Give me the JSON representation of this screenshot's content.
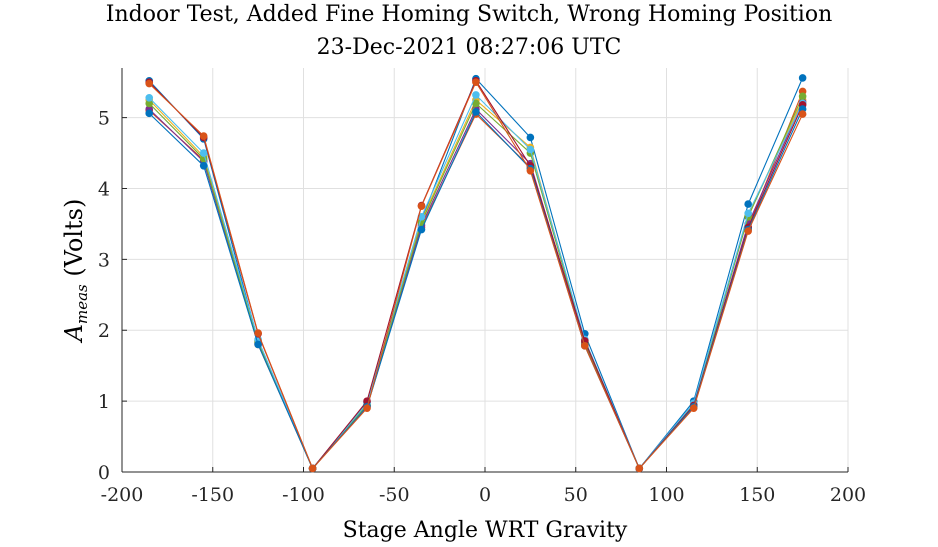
{
  "chart_data": {
    "type": "line",
    "title": "Indoor Test, Added Fine Homing Switch, Wrong Homing Position",
    "subtitle": "23-Dec-2021 08:27:06 UTC",
    "xlabel": "Stage Angle WRT Gravity",
    "ylabel_main": "A",
    "ylabel_sub": "meas",
    "ylabel_unit": "(Volts)",
    "xlim": [
      -200,
      200
    ],
    "ylim": [
      0,
      5.7
    ],
    "xticks": [
      -200,
      -150,
      -100,
      -50,
      0,
      50,
      100,
      150,
      200
    ],
    "yticks": [
      0,
      1,
      2,
      3,
      4,
      5
    ],
    "grid": true,
    "x": [
      -185,
      -155,
      -125,
      -95,
      -65,
      -35,
      -5,
      25,
      55,
      85,
      115,
      145,
      175
    ],
    "series": [
      {
        "color": "#0072BD",
        "values": [
          5.52,
          4.7,
          1.85,
          0.05,
          0.98,
          3.55,
          5.55,
          4.72,
          1.95,
          0.05,
          1.0,
          3.78,
          5.56
        ]
      },
      {
        "color": "#D95319",
        "values": [
          5.1,
          4.4,
          1.8,
          0.05,
          0.92,
          3.45,
          5.05,
          4.3,
          1.8,
          0.05,
          0.92,
          3.45,
          5.37
        ]
      },
      {
        "color": "#EDB120",
        "values": [
          5.25,
          4.45,
          1.85,
          0.05,
          0.95,
          3.55,
          5.25,
          4.58,
          1.85,
          0.05,
          0.95,
          3.62,
          5.25
        ]
      },
      {
        "color": "#7E2F8E",
        "values": [
          5.12,
          4.38,
          1.82,
          0.05,
          0.94,
          3.48,
          5.12,
          4.35,
          1.82,
          0.05,
          0.94,
          3.5,
          5.22
        ]
      },
      {
        "color": "#77AC30",
        "values": [
          5.2,
          4.42,
          1.83,
          0.05,
          0.95,
          3.52,
          5.2,
          4.5,
          1.83,
          0.05,
          0.95,
          3.6,
          5.3
        ]
      },
      {
        "color": "#4DBEEE",
        "values": [
          5.28,
          4.5,
          1.87,
          0.05,
          0.97,
          3.6,
          5.32,
          4.55,
          1.87,
          0.05,
          0.97,
          3.65,
          5.2
        ]
      },
      {
        "color": "#A2142F",
        "values": [
          5.5,
          4.72,
          1.95,
          0.05,
          1.0,
          3.76,
          5.52,
          4.32,
          1.85,
          0.05,
          0.94,
          3.45,
          5.18
        ]
      },
      {
        "color": "#0072BD",
        "values": [
          5.06,
          4.32,
          1.8,
          0.05,
          0.92,
          3.42,
          5.08,
          4.28,
          1.78,
          0.05,
          0.92,
          3.42,
          5.12
        ]
      },
      {
        "color": "#D95319",
        "values": [
          5.48,
          4.74,
          1.96,
          0.05,
          0.9,
          3.75,
          5.5,
          4.25,
          1.78,
          0.05,
          0.9,
          3.4,
          5.05
        ]
      }
    ]
  }
}
